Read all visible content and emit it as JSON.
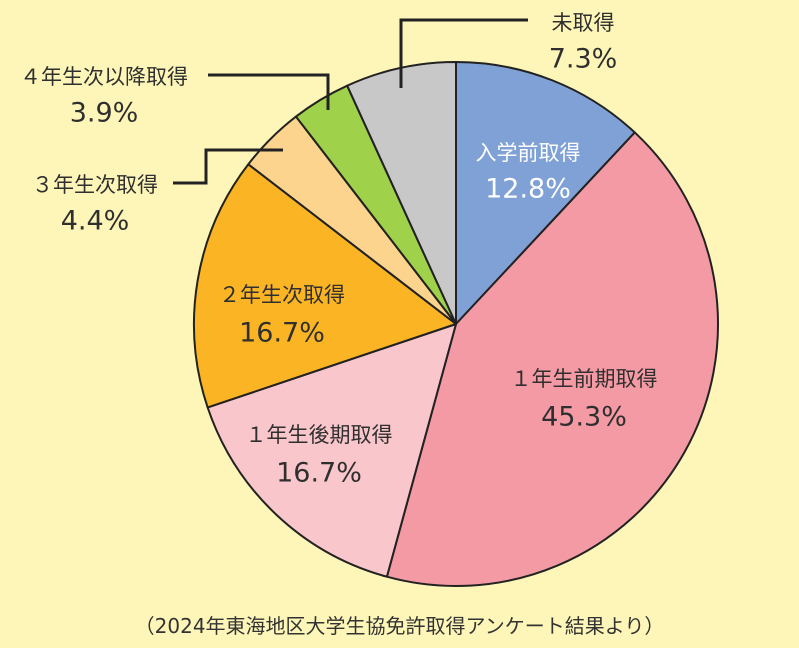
{
  "chart_data": {
    "type": "pie",
    "start": "12 o'clock",
    "direction": "clockwise",
    "slices": [
      {
        "label": "入学前取得",
        "value": 12.8,
        "display": "12.8%",
        "color": "#7fa1d6"
      },
      {
        "label": "１年生前期取得",
        "value": 45.3,
        "display": "45.3%",
        "color": "#f49aa5"
      },
      {
        "label": "１年生後期取得",
        "value": 16.7,
        "display": "16.7%",
        "color": "#f9c6cb"
      },
      {
        "label": "２年生次取得",
        "value": 16.7,
        "display": "16.7%",
        "color": "#fbb524"
      },
      {
        "label": "３年生次取得",
        "value": 4.4,
        "display": "4.4%",
        "color": "#fcd48e"
      },
      {
        "label": "４年生次以降取得",
        "value": 3.9,
        "display": "3.9%",
        "color": "#9fd14a"
      },
      {
        "label": "未取得",
        "value": 7.3,
        "display": "7.3%",
        "color": "#c8c8c8"
      }
    ]
  },
  "source_note": "（2024年東海地区大学生協免許取得アンケート結果より）"
}
